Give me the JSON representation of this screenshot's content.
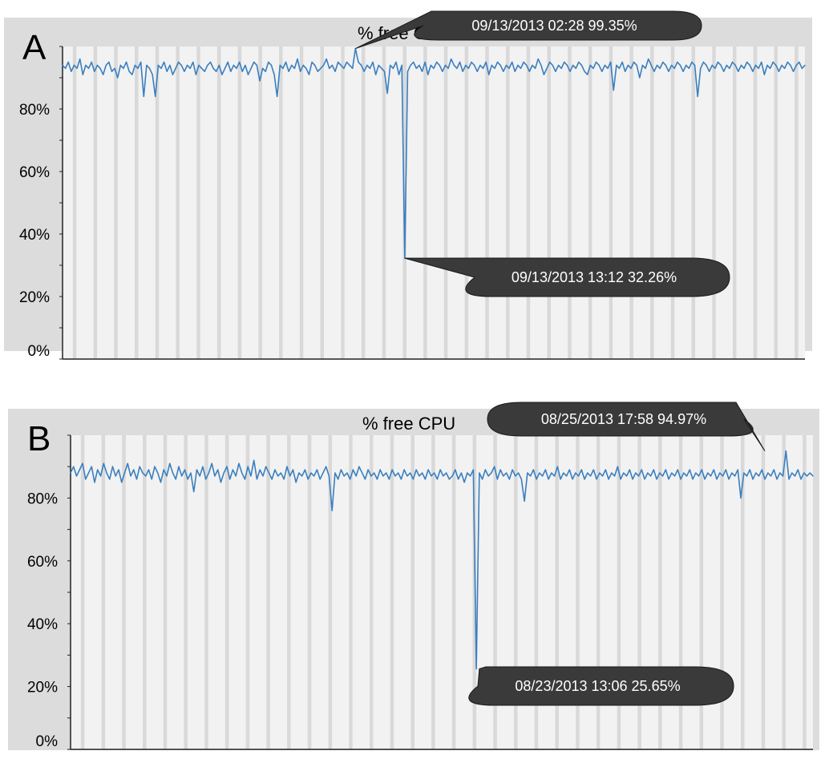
{
  "colors": {
    "line": "#3a7fbf",
    "plot_bg": "#f2f2f2",
    "outer_bg": "#dcdcdc",
    "stripe": "#d9d9d9",
    "callout": "#3a3a3a",
    "axis": "#222222"
  },
  "chart_data": [
    {
      "type": "line",
      "panel_label": "A",
      "title": "% free CPU",
      "xlabel": "",
      "ylabel": "",
      "ylim": [
        0,
        100
      ],
      "yticks": [
        0,
        20,
        40,
        60,
        80
      ],
      "ytick_labels": [
        "0%",
        "20%",
        "40%",
        "60%",
        "80%"
      ],
      "grid": "vertical stripes",
      "series": [
        {
          "values": [
            94,
            93,
            95,
            92,
            94,
            93,
            96,
            91,
            94,
            93,
            95,
            92,
            94,
            93,
            91,
            94,
            95,
            92,
            93,
            90,
            94,
            93,
            95,
            92,
            91,
            94,
            93,
            95,
            84,
            94,
            93,
            91,
            84,
            94,
            93,
            95,
            92,
            94,
            91,
            93,
            95,
            94,
            92,
            94,
            93,
            95,
            91,
            94,
            93,
            92,
            94,
            95,
            93,
            92,
            94,
            91,
            93,
            95,
            92,
            94,
            93,
            95,
            92,
            94,
            91,
            93,
            95,
            94,
            89,
            93,
            92,
            95,
            94,
            91,
            84,
            94,
            93,
            95,
            92,
            94,
            93,
            96,
            92,
            94,
            93,
            91,
            95,
            94,
            92,
            93,
            94,
            96,
            93,
            94,
            92,
            95,
            94,
            93,
            95,
            94,
            93,
            99.35,
            95,
            94,
            92,
            94,
            93,
            95,
            91,
            94,
            93,
            92,
            85,
            94,
            93,
            95,
            91,
            94,
            32.26,
            92,
            94,
            95,
            93,
            94,
            92,
            95,
            91,
            94,
            93,
            95,
            94,
            92,
            94,
            93,
            96,
            94,
            93,
            95,
            92,
            94,
            93,
            95,
            94,
            92,
            94,
            93,
            95,
            91,
            94,
            93,
            95,
            94,
            92,
            94,
            93,
            95,
            92,
            94,
            93,
            95,
            94,
            92,
            94,
            93,
            96,
            94,
            91,
            93,
            95,
            94,
            92,
            94,
            93,
            95,
            94,
            92,
            94,
            93,
            95,
            94,
            92,
            91,
            94,
            93,
            95,
            94,
            92,
            94,
            93,
            95,
            86,
            94,
            93,
            95,
            92,
            94,
            93,
            95,
            94,
            90,
            94,
            93,
            96,
            94,
            92,
            94,
            93,
            95,
            94,
            92,
            94,
            93,
            95,
            94,
            92,
            94,
            93,
            95,
            94,
            84,
            93,
            95,
            94,
            92,
            94,
            93,
            95,
            94,
            92,
            94,
            93,
            95,
            94,
            92,
            94,
            93,
            95,
            94,
            92,
            94,
            93,
            95,
            91,
            94,
            93,
            95,
            94,
            92,
            94,
            93,
            95,
            94,
            92,
            94,
            95,
            93,
            94
          ]
        }
      ],
      "annotations": [
        {
          "text": "09/13/2013 02:28  99.35%",
          "point_index": 101,
          "value": 99.35
        },
        {
          "text": "09/13/2013 13:12  32.26%",
          "point_index": 118,
          "value": 32.26
        }
      ]
    },
    {
      "type": "line",
      "panel_label": "B",
      "title": "% free CPU",
      "xlabel": "",
      "ylabel": "",
      "ylim": [
        0,
        100
      ],
      "yticks": [
        0,
        20,
        40,
        60,
        80
      ],
      "ytick_labels": [
        "0%",
        "20%",
        "40%",
        "60%",
        "80%"
      ],
      "grid": "vertical stripes",
      "series": [
        {
          "values": [
            88,
            90,
            87,
            89,
            91,
            86,
            88,
            90,
            85,
            89,
            87,
            91,
            88,
            86,
            90,
            87,
            89,
            85,
            88,
            91,
            87,
            89,
            86,
            90,
            88,
            87,
            89,
            86,
            90,
            88,
            85,
            89,
            87,
            91,
            88,
            86,
            90,
            87,
            89,
            86,
            88,
            82,
            89,
            87,
            90,
            86,
            88,
            91,
            87,
            89,
            85,
            88,
            90,
            86,
            89,
            87,
            91,
            88,
            86,
            90,
            87,
            92,
            86,
            89,
            87,
            90,
            88,
            86,
            89,
            87,
            88,
            86,
            90,
            87,
            89,
            85,
            88,
            87,
            89,
            86,
            88,
            87,
            89,
            86,
            88,
            90,
            87,
            76,
            88,
            86,
            89,
            87,
            88,
            86,
            89,
            87,
            90,
            88,
            86,
            89,
            87,
            88,
            86,
            89,
            87,
            88,
            86,
            89,
            87,
            88,
            86,
            89,
            87,
            88,
            86,
            89,
            87,
            88,
            86,
            89,
            87,
            88,
            86,
            89,
            87,
            88,
            86,
            87,
            89,
            86,
            88,
            85,
            88,
            87,
            89,
            25.65,
            88,
            86,
            89,
            87,
            88,
            90,
            86,
            89,
            87,
            88,
            86,
            89,
            87,
            88,
            86,
            79,
            88,
            87,
            89,
            86,
            88,
            87,
            89,
            86,
            88,
            87,
            90,
            86,
            88,
            87,
            89,
            86,
            88,
            87,
            89,
            86,
            88,
            87,
            89,
            86,
            88,
            87,
            89,
            86,
            88,
            87,
            90,
            86,
            88,
            87,
            89,
            86,
            88,
            87,
            89,
            86,
            88,
            87,
            89,
            86,
            88,
            87,
            89,
            86,
            88,
            87,
            89,
            86,
            88,
            87,
            89,
            86,
            88,
            87,
            89,
            86,
            88,
            87,
            89,
            86,
            88,
            87,
            89,
            86,
            88,
            87,
            89,
            80,
            88,
            87,
            89,
            86,
            88,
            87,
            89,
            86,
            88,
            87,
            89,
            86,
            88,
            87,
            94.97,
            86,
            88,
            87,
            89,
            86,
            88,
            87,
            88,
            87
          ]
        }
      ],
      "annotations": [
        {
          "text": "08/25/2013 17:58  94.97%",
          "point_index": 231,
          "value": 94.97
        },
        {
          "text": "08/23/2013 13:06  25.65%",
          "point_index": 136,
          "value": 25.65
        }
      ]
    }
  ]
}
